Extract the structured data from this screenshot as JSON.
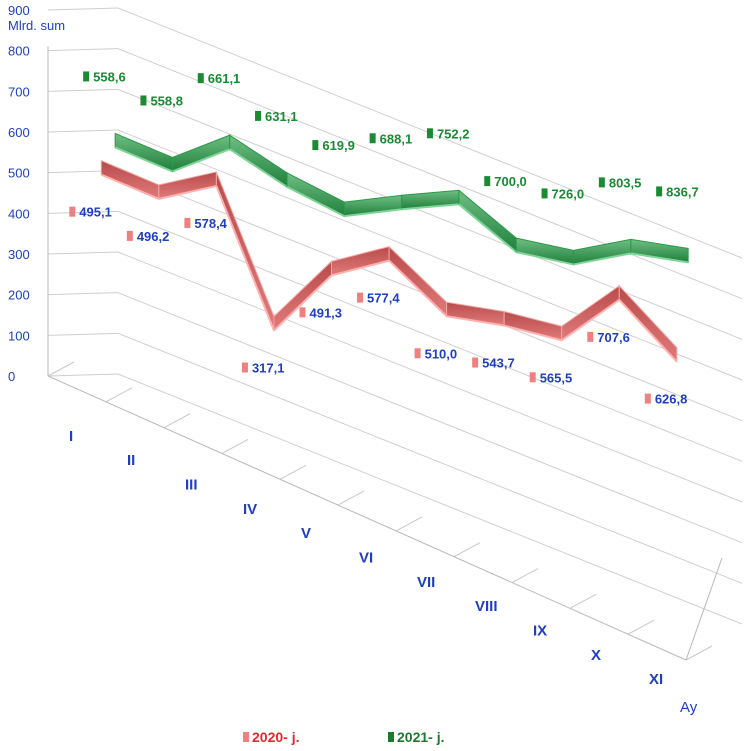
{
  "chart_data": {
    "type": "line",
    "style": "3d-ribbon",
    "ylabel": "Mlrd. sum",
    "xlabel": "Ay",
    "ylim": [
      0,
      900
    ],
    "yticks": [
      0,
      100,
      200,
      300,
      400,
      500,
      600,
      700,
      800,
      900
    ],
    "categories": [
      "I",
      "II",
      "III",
      "IV",
      "V",
      "VI",
      "VII",
      "VIII",
      "IX",
      "X",
      "XI"
    ],
    "series": [
      {
        "name": "2020- j.",
        "color": "#d9534f",
        "values": [
          495.1,
          496.2,
          578.4,
          317.1,
          491.3,
          577.4,
          510.0,
          543.7,
          565.5,
          707.6,
          626.8
        ],
        "labels": [
          "495,1",
          "496,2",
          "578,4",
          "317,1",
          "491,3",
          "577,4",
          "510,0",
          "543,7",
          "565,5",
          "707,6",
          "626,8"
        ]
      },
      {
        "name": "2021- j.",
        "color": "#2e9e4f",
        "values": [
          558.6,
          558.8,
          661.1,
          631.1,
          619.9,
          688.1,
          752.2,
          700.0,
          726.0,
          803.5,
          836.7
        ],
        "labels": [
          "558,6",
          "558,8",
          "661,1",
          "631,1",
          "619,9",
          "688,1",
          "752,2",
          "700,0",
          "726,0",
          "803,5",
          "836,7"
        ]
      }
    ],
    "legend": "bottom",
    "grid": true
  }
}
